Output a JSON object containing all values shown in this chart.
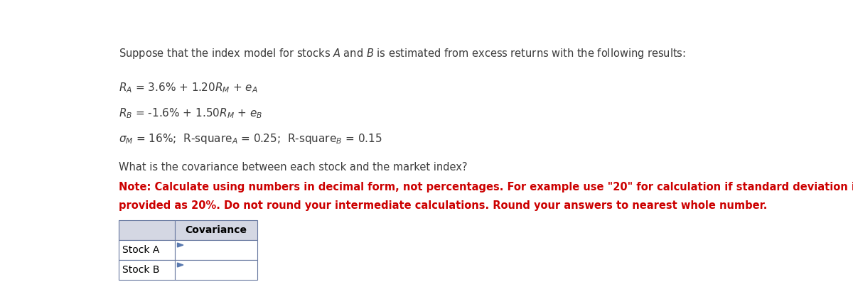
{
  "title_line": "Suppose that the index model for stocks $A$ and $B$ is estimated from excess returns with the following results:",
  "question": "What is the covariance between each stock and the market index?",
  "note_line1": "Note: Calculate using numbers in decimal form, not percentages. For example use \"20\" for calculation if standard deviation is",
  "note_line2": "provided as 20%. Do not round your intermediate calculations. Round your answers to nearest whole number.",
  "table_rows": [
    "Stock A",
    "Stock B"
  ],
  "table_header": "Covariance",
  "text_color": "#3c3c3c",
  "note_color": "#cc0000",
  "header_bg": "#d4d7e3",
  "cell_bg": "#ffffff",
  "border_color": "#6878a0",
  "tri_color": "#5a7ab0"
}
